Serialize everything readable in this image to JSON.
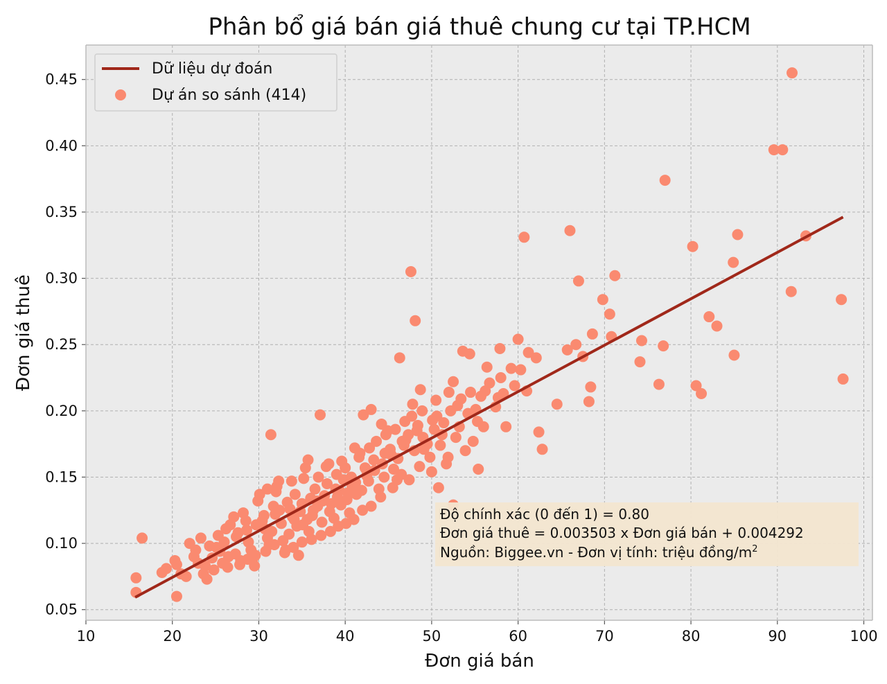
{
  "chart_data": {
    "type": "scatter",
    "title": "Phân bổ giá bán giá thuê chung cư tại TP.HCM",
    "xlabel": "Đơn giá bán",
    "ylabel": "Đơn giá thuê",
    "xlim": [
      10,
      101
    ],
    "ylim": [
      0.042,
      0.476
    ],
    "xticks": [
      10,
      20,
      30,
      40,
      50,
      60,
      70,
      80,
      90,
      100
    ],
    "xtick_labels": [
      "10",
      "20",
      "30",
      "40",
      "50",
      "60",
      "70",
      "80",
      "90",
      "100"
    ],
    "yticks": [
      0.05,
      0.1,
      0.15,
      0.2,
      0.25,
      0.3,
      0.35,
      0.4,
      0.45
    ],
    "ytick_labels": [
      "0.05",
      "0.10",
      "0.15",
      "0.20",
      "0.25",
      "0.30",
      "0.35",
      "0.40",
      "0.45"
    ],
    "grid": true,
    "legend_position": "top-left",
    "legend": {
      "line_label": "Dữ liệu dự đoán",
      "scatter_label": "Dự án so sánh (414)"
    },
    "colors": {
      "background": "#ebebeb",
      "points": "#fa8a70",
      "fit_line": "#a0281a",
      "annotation_box": "#f3e6d0",
      "grid": "#b0b0b0"
    },
    "fit_line": {
      "slope": 0.003503,
      "intercept": 0.004292,
      "x": [
        15.7,
        97.6
      ],
      "y": [
        0.0593,
        0.3462
      ]
    },
    "annotation": {
      "line1": "Độ chính xác (0 đến 1) = 0.80",
      "line2": "Đơn giá thuê = 0.003503 x Đơn giá bán + 0.004292",
      "line3_prefix": "Nguồn: Biggee.vn - Đơn vị tính: triệu đồng/m",
      "line3_sup": "2"
    },
    "series": [
      {
        "name": "Dự án so sánh (414)",
        "points": [
          [
            15.8,
            0.074
          ],
          [
            15.8,
            0.063
          ],
          [
            16.5,
            0.104
          ],
          [
            18.8,
            0.078
          ],
          [
            19.3,
            0.081
          ],
          [
            20.3,
            0.087
          ],
          [
            20.5,
            0.06
          ],
          [
            21.0,
            0.077
          ],
          [
            21.6,
            0.075
          ],
          [
            22.0,
            0.1
          ],
          [
            22.7,
            0.095
          ],
          [
            23.3,
            0.104
          ],
          [
            23.0,
            0.085
          ],
          [
            23.6,
            0.077
          ],
          [
            24.0,
            0.073
          ],
          [
            24.6,
            0.089
          ],
          [
            25.1,
            0.097
          ],
          [
            25.3,
            0.106
          ],
          [
            25.8,
            0.085
          ],
          [
            26.2,
            0.111
          ],
          [
            26.4,
            0.082
          ],
          [
            26.7,
            0.114
          ],
          [
            27.1,
            0.12
          ],
          [
            27.3,
            0.092
          ],
          [
            27.6,
            0.108
          ],
          [
            27.9,
            0.087
          ],
          [
            28.2,
            0.123
          ],
          [
            28.5,
            0.117
          ],
          [
            28.8,
            0.101
          ],
          [
            29.1,
            0.095
          ],
          [
            29.3,
            0.088
          ],
          [
            29.5,
            0.083
          ],
          [
            29.9,
            0.132
          ],
          [
            30.1,
            0.137
          ],
          [
            30.4,
            0.117
          ],
          [
            30.7,
            0.111
          ],
          [
            31.0,
            0.104
          ],
          [
            31.2,
            0.099
          ],
          [
            31.4,
            0.182
          ],
          [
            31.7,
            0.128
          ],
          [
            31.9,
            0.122
          ],
          [
            32.1,
            0.143
          ],
          [
            32.3,
            0.147
          ],
          [
            32.6,
            0.115
          ],
          [
            32.8,
            0.102
          ],
          [
            33.0,
            0.093
          ],
          [
            33.3,
            0.131
          ],
          [
            33.6,
            0.126
          ],
          [
            33.9,
            0.12
          ],
          [
            34.2,
            0.137
          ],
          [
            34.4,
            0.113
          ],
          [
            34.6,
            0.091
          ],
          [
            34.8,
            0.124
          ],
          [
            35.0,
            0.13
          ],
          [
            35.2,
            0.149
          ],
          [
            35.4,
            0.157
          ],
          [
            35.6,
            0.118
          ],
          [
            35.8,
            0.109
          ],
          [
            36.0,
            0.134
          ],
          [
            36.2,
            0.121
          ],
          [
            36.5,
            0.141
          ],
          [
            36.8,
            0.128
          ],
          [
            37.1,
            0.197
          ],
          [
            37.3,
            0.116
          ],
          [
            37.6,
            0.136
          ],
          [
            37.9,
            0.145
          ],
          [
            38.1,
            0.16
          ],
          [
            38.4,
            0.13
          ],
          [
            38.7,
            0.119
          ],
          [
            39.0,
            0.152
          ],
          [
            39.3,
            0.14
          ],
          [
            39.5,
            0.129
          ],
          [
            39.8,
            0.148
          ],
          [
            40.0,
            0.157
          ],
          [
            40.2,
            0.133
          ],
          [
            40.5,
            0.123
          ],
          [
            40.8,
            0.143
          ],
          [
            41.1,
            0.172
          ],
          [
            41.3,
            0.137
          ],
          [
            41.6,
            0.165
          ],
          [
            41.9,
            0.14
          ],
          [
            42.1,
            0.197
          ],
          [
            42.4,
            0.156
          ],
          [
            42.7,
            0.147
          ],
          [
            43.0,
            0.201
          ],
          [
            43.3,
            0.163
          ],
          [
            43.6,
            0.177
          ],
          [
            43.9,
            0.141
          ],
          [
            44.2,
            0.19
          ],
          [
            44.5,
            0.15
          ],
          [
            44.9,
            0.185
          ],
          [
            45.3,
            0.167
          ],
          [
            45.6,
            0.156
          ],
          [
            46.0,
            0.148
          ],
          [
            46.3,
            0.24
          ],
          [
            46.6,
            0.177
          ],
          [
            46.9,
            0.192
          ],
          [
            47.3,
            0.182
          ],
          [
            47.6,
            0.305
          ],
          [
            47.8,
            0.205
          ],
          [
            48.1,
            0.268
          ],
          [
            48.4,
            0.189
          ],
          [
            48.7,
            0.216
          ],
          [
            49.1,
            0.171
          ],
          [
            49.5,
            0.175
          ],
          [
            50.0,
            0.154
          ],
          [
            50.6,
            0.196
          ],
          [
            51.2,
            0.182
          ],
          [
            51.9,
            0.165
          ],
          [
            52.5,
            0.222
          ],
          [
            53.0,
            0.204
          ],
          [
            53.6,
            0.245
          ],
          [
            54.2,
            0.198
          ],
          [
            54.8,
            0.177
          ],
          [
            55.4,
            0.156
          ],
          [
            56.0,
            0.188
          ],
          [
            56.7,
            0.221
          ],
          [
            57.4,
            0.203
          ],
          [
            57.9,
            0.247
          ],
          [
            58.6,
            0.188
          ],
          [
            59.2,
            0.232
          ],
          [
            60.0,
            0.254
          ],
          [
            60.7,
            0.331
          ],
          [
            61.0,
            0.215
          ],
          [
            62.4,
            0.184
          ],
          [
            62.8,
            0.171
          ],
          [
            64.5,
            0.205
          ],
          [
            65.7,
            0.246
          ],
          [
            66.0,
            0.336
          ],
          [
            66.7,
            0.25
          ],
          [
            67.0,
            0.298
          ],
          [
            67.5,
            0.241
          ],
          [
            68.2,
            0.207
          ],
          [
            68.4,
            0.218
          ],
          [
            68.6,
            0.258
          ],
          [
            69.8,
            0.284
          ],
          [
            70.6,
            0.273
          ],
          [
            70.8,
            0.256
          ],
          [
            71.2,
            0.302
          ],
          [
            74.1,
            0.237
          ],
          [
            74.3,
            0.253
          ],
          [
            76.3,
            0.22
          ],
          [
            76.8,
            0.249
          ],
          [
            77.0,
            0.374
          ],
          [
            80.2,
            0.324
          ],
          [
            80.6,
            0.219
          ],
          [
            81.2,
            0.213
          ],
          [
            82.1,
            0.271
          ],
          [
            83.0,
            0.264
          ],
          [
            84.9,
            0.312
          ],
          [
            85.0,
            0.242
          ],
          [
            85.4,
            0.333
          ],
          [
            89.6,
            0.397
          ],
          [
            90.6,
            0.397
          ],
          [
            91.6,
            0.29
          ],
          [
            91.7,
            0.455
          ],
          [
            93.3,
            0.332
          ],
          [
            97.4,
            0.284
          ],
          [
            97.6,
            0.224
          ],
          [
            52.5,
            0.129
          ],
          [
            20.5,
            0.084
          ],
          [
            22.5,
            0.09
          ],
          [
            24.3,
            0.098
          ],
          [
            26.0,
            0.101
          ],
          [
            27.4,
            0.105
          ],
          [
            28.6,
            0.11
          ],
          [
            29.7,
            0.114
          ],
          [
            30.6,
            0.121
          ],
          [
            31.5,
            0.109
          ],
          [
            32.4,
            0.125
          ],
          [
            33.5,
            0.107
          ],
          [
            34.1,
            0.118
          ],
          [
            35.1,
            0.114
          ],
          [
            36.3,
            0.125
          ],
          [
            37.4,
            0.132
          ],
          [
            38.2,
            0.124
          ],
          [
            39.1,
            0.135
          ],
          [
            40.3,
            0.138
          ],
          [
            41.2,
            0.146
          ],
          [
            42.5,
            0.151
          ],
          [
            43.4,
            0.155
          ],
          [
            44.3,
            0.16
          ],
          [
            45.2,
            0.171
          ],
          [
            46.1,
            0.164
          ],
          [
            47.0,
            0.178
          ],
          [
            48.0,
            0.17
          ],
          [
            49.0,
            0.18
          ],
          [
            50.3,
            0.186
          ],
          [
            51.4,
            0.191
          ],
          [
            52.2,
            0.2
          ],
          [
            53.2,
            0.188
          ],
          [
            54.5,
            0.214
          ],
          [
            55.3,
            0.192
          ],
          [
            56.4,
            0.233
          ],
          [
            57.7,
            0.21
          ],
          [
            58.3,
            0.213
          ],
          [
            59.6,
            0.219
          ],
          [
            60.3,
            0.231
          ],
          [
            61.2,
            0.244
          ],
          [
            62.1,
            0.24
          ],
          [
            46.5,
            0.152
          ],
          [
            47.4,
            0.148
          ],
          [
            48.6,
            0.158
          ],
          [
            49.8,
            0.165
          ],
          [
            50.8,
            0.142
          ],
          [
            51.7,
            0.16
          ],
          [
            53.9,
            0.17
          ],
          [
            55.7,
            0.211
          ],
          [
            45.5,
            0.142
          ],
          [
            44.1,
            0.135
          ],
          [
            43.0,
            0.128
          ],
          [
            42.0,
            0.125
          ],
          [
            41.0,
            0.118
          ],
          [
            40.1,
            0.115
          ],
          [
            39.2,
            0.113
          ],
          [
            38.3,
            0.109
          ],
          [
            37.2,
            0.106
          ],
          [
            36.1,
            0.103
          ],
          [
            35.0,
            0.101
          ],
          [
            34.0,
            0.097
          ],
          [
            33.1,
            0.095
          ],
          [
            31.8,
            0.099
          ],
          [
            30.8,
            0.094
          ],
          [
            29.6,
            0.091
          ],
          [
            28.7,
            0.088
          ],
          [
            27.8,
            0.084
          ],
          [
            26.5,
            0.09
          ],
          [
            25.5,
            0.094
          ],
          [
            24.8,
            0.08
          ],
          [
            23.8,
            0.083
          ],
          [
            31.0,
            0.141
          ],
          [
            32.0,
            0.139
          ],
          [
            33.8,
            0.147
          ],
          [
            35.7,
            0.163
          ],
          [
            36.9,
            0.15
          ],
          [
            37.8,
            0.158
          ],
          [
            39.6,
            0.162
          ],
          [
            41.7,
            0.168
          ],
          [
            42.8,
            0.172
          ],
          [
            44.7,
            0.182
          ],
          [
            45.8,
            0.186
          ],
          [
            47.7,
            0.196
          ],
          [
            48.9,
            0.2
          ],
          [
            50.5,
            0.208
          ],
          [
            52.0,
            0.214
          ],
          [
            53.4,
            0.209
          ],
          [
            54.4,
            0.243
          ],
          [
            55.1,
            0.201
          ],
          [
            56.2,
            0.215
          ],
          [
            58.0,
            0.225
          ],
          [
            36.7,
            0.132
          ],
          [
            38.9,
            0.141
          ],
          [
            40.7,
            0.15
          ],
          [
            42.3,
            0.157
          ],
          [
            44.6,
            0.168
          ],
          [
            46.8,
            0.174
          ],
          [
            48.3,
            0.185
          ],
          [
            50.1,
            0.193
          ],
          [
            51.0,
            0.174
          ],
          [
            52.8,
            0.18
          ]
        ]
      }
    ]
  }
}
